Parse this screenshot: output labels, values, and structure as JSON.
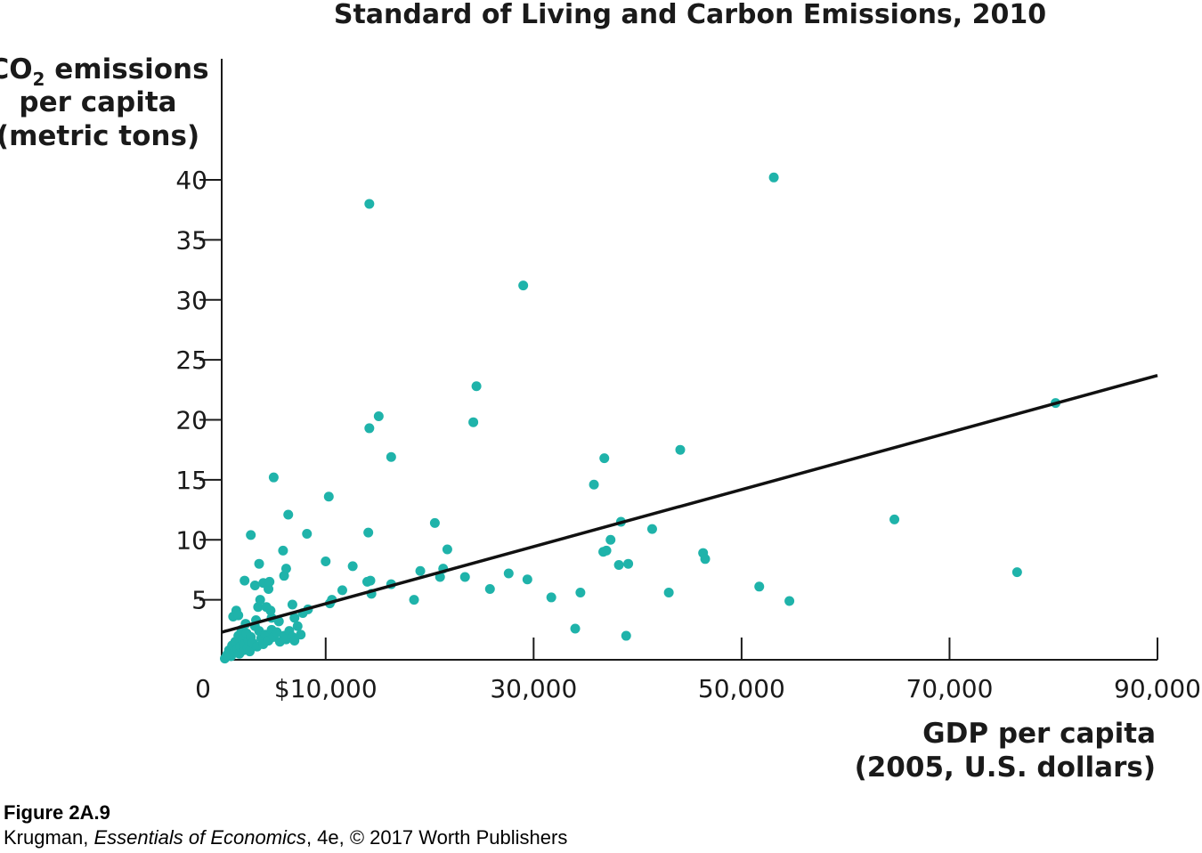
{
  "chart_data": {
    "type": "scatter",
    "title": "Standard of Living and Carbon Emissions, 2010",
    "ylabel_prefix": "CO",
    "ylabel_sub": "2",
    "ylabel_line1_rest": " emissions",
    "ylabel_line2": "per capita",
    "ylabel_line3": "(metric tons)",
    "xlabel_line1": "GDP per capita",
    "xlabel_line2": "(2005, U.S. dollars)",
    "xlim": [
      0,
      90000
    ],
    "ylim": [
      0,
      40
    ],
    "x_ticks": [
      {
        "value": 0,
        "label": "0"
      },
      {
        "value": 10000,
        "label": "$10,000"
      },
      {
        "value": 30000,
        "label": "30,000"
      },
      {
        "value": 50000,
        "label": "50,000"
      },
      {
        "value": 70000,
        "label": "70,000"
      },
      {
        "value": 90000,
        "label": "90,000"
      }
    ],
    "y_ticks": [
      {
        "value": 5,
        "label": "5"
      },
      {
        "value": 10,
        "label": "10"
      },
      {
        "value": 15,
        "label": "15"
      },
      {
        "value": 20,
        "label": "20"
      },
      {
        "value": 25,
        "label": "25"
      },
      {
        "value": 30,
        "label": "30"
      },
      {
        "value": 35,
        "label": "35"
      },
      {
        "value": 40,
        "label": "40"
      }
    ],
    "point_color": "#1fb3aa",
    "line_color": "#111111",
    "trend_line": [
      [
        0,
        2.3
      ],
      [
        90000,
        23.7
      ]
    ],
    "points": [
      [
        300,
        0.1
      ],
      [
        500,
        0.4
      ],
      [
        700,
        0.8
      ],
      [
        900,
        0.3
      ],
      [
        1000,
        1.2
      ],
      [
        1200,
        0.6
      ],
      [
        1300,
        1.5
      ],
      [
        1500,
        0.9
      ],
      [
        1600,
        2.0
      ],
      [
        1700,
        0.5
      ],
      [
        1800,
        1.1
      ],
      [
        1900,
        2.5
      ],
      [
        2000,
        1.7
      ],
      [
        2100,
        0.8
      ],
      [
        2200,
        1.3
      ],
      [
        2300,
        3.0
      ],
      [
        2400,
        2.2
      ],
      [
        2500,
        1.0
      ],
      [
        2600,
        1.6
      ],
      [
        2700,
        0.7
      ],
      [
        2800,
        1.9
      ],
      [
        3000,
        1.4
      ],
      [
        3200,
        2.8
      ],
      [
        3400,
        1.1
      ],
      [
        3600,
        2.4
      ],
      [
        3800,
        1.8
      ],
      [
        4000,
        1.3
      ],
      [
        4200,
        2.1
      ],
      [
        4500,
        1.6
      ],
      [
        4800,
        2.5
      ],
      [
        5000,
        1.9
      ],
      [
        5300,
        2.3
      ],
      [
        5600,
        1.5
      ],
      [
        6000,
        2.0
      ],
      [
        6200,
        1.7
      ],
      [
        6500,
        2.4
      ],
      [
        6800,
        1.9
      ],
      [
        7000,
        1.6
      ],
      [
        7300,
        2.8
      ],
      [
        7600,
        2.1
      ],
      [
        1100,
        3.6
      ],
      [
        1400,
        4.1
      ],
      [
        1600,
        3.7
      ],
      [
        2200,
        6.6
      ],
      [
        2800,
        10.4
      ],
      [
        3200,
        6.2
      ],
      [
        3300,
        3.3
      ],
      [
        3500,
        4.4
      ],
      [
        3600,
        8.0
      ],
      [
        3700,
        5.0
      ],
      [
        4000,
        6.4
      ],
      [
        4300,
        4.4
      ],
      [
        4500,
        5.9
      ],
      [
        4600,
        6.5
      ],
      [
        4700,
        4.1
      ],
      [
        4800,
        3.5
      ],
      [
        5000,
        15.2
      ],
      [
        5500,
        3.2
      ],
      [
        5900,
        9.1
      ],
      [
        6000,
        7.0
      ],
      [
        6200,
        7.6
      ],
      [
        6400,
        12.1
      ],
      [
        6800,
        4.6
      ],
      [
        7000,
        3.5
      ],
      [
        7800,
        3.9
      ],
      [
        8200,
        10.5
      ],
      [
        8300,
        4.2
      ],
      [
        10000,
        8.2
      ],
      [
        10300,
        13.6
      ],
      [
        10400,
        4.7
      ],
      [
        10600,
        5.0
      ],
      [
        11600,
        5.8
      ],
      [
        12600,
        7.8
      ],
      [
        14000,
        6.5
      ],
      [
        14100,
        10.6
      ],
      [
        14200,
        38.0
      ],
      [
        14200,
        19.3
      ],
      [
        14300,
        6.6
      ],
      [
        14400,
        5.5
      ],
      [
        15100,
        20.3
      ],
      [
        16300,
        16.9
      ],
      [
        16300,
        6.3
      ],
      [
        18500,
        5.0
      ],
      [
        19100,
        7.4
      ],
      [
        20500,
        11.4
      ],
      [
        21000,
        6.9
      ],
      [
        21300,
        7.6
      ],
      [
        21700,
        9.2
      ],
      [
        23400,
        6.9
      ],
      [
        24200,
        19.8
      ],
      [
        24500,
        22.8
      ],
      [
        25800,
        5.9
      ],
      [
        27600,
        7.2
      ],
      [
        29000,
        31.2
      ],
      [
        29400,
        6.7
      ],
      [
        31700,
        5.2
      ],
      [
        34000,
        2.6
      ],
      [
        34500,
        5.6
      ],
      [
        35800,
        14.6
      ],
      [
        36800,
        16.8
      ],
      [
        36700,
        9.0
      ],
      [
        37000,
        9.1
      ],
      [
        37400,
        10.0
      ],
      [
        38200,
        7.9
      ],
      [
        38400,
        11.5
      ],
      [
        38900,
        2.0
      ],
      [
        39100,
        8.0
      ],
      [
        41400,
        10.9
      ],
      [
        43000,
        5.6
      ],
      [
        44100,
        17.5
      ],
      [
        46300,
        8.9
      ],
      [
        46500,
        8.4
      ],
      [
        51700,
        6.1
      ],
      [
        53100,
        40.2
      ],
      [
        54600,
        4.9
      ],
      [
        64700,
        11.7
      ],
      [
        76500,
        7.3
      ],
      [
        80200,
        21.4
      ]
    ]
  },
  "caption": {
    "figure_label": "Figure 2A.9",
    "author": "Krugman, ",
    "book": "Essentials of Economics",
    "edition_publisher": ", 4e, © 2017 Worth Publishers"
  }
}
